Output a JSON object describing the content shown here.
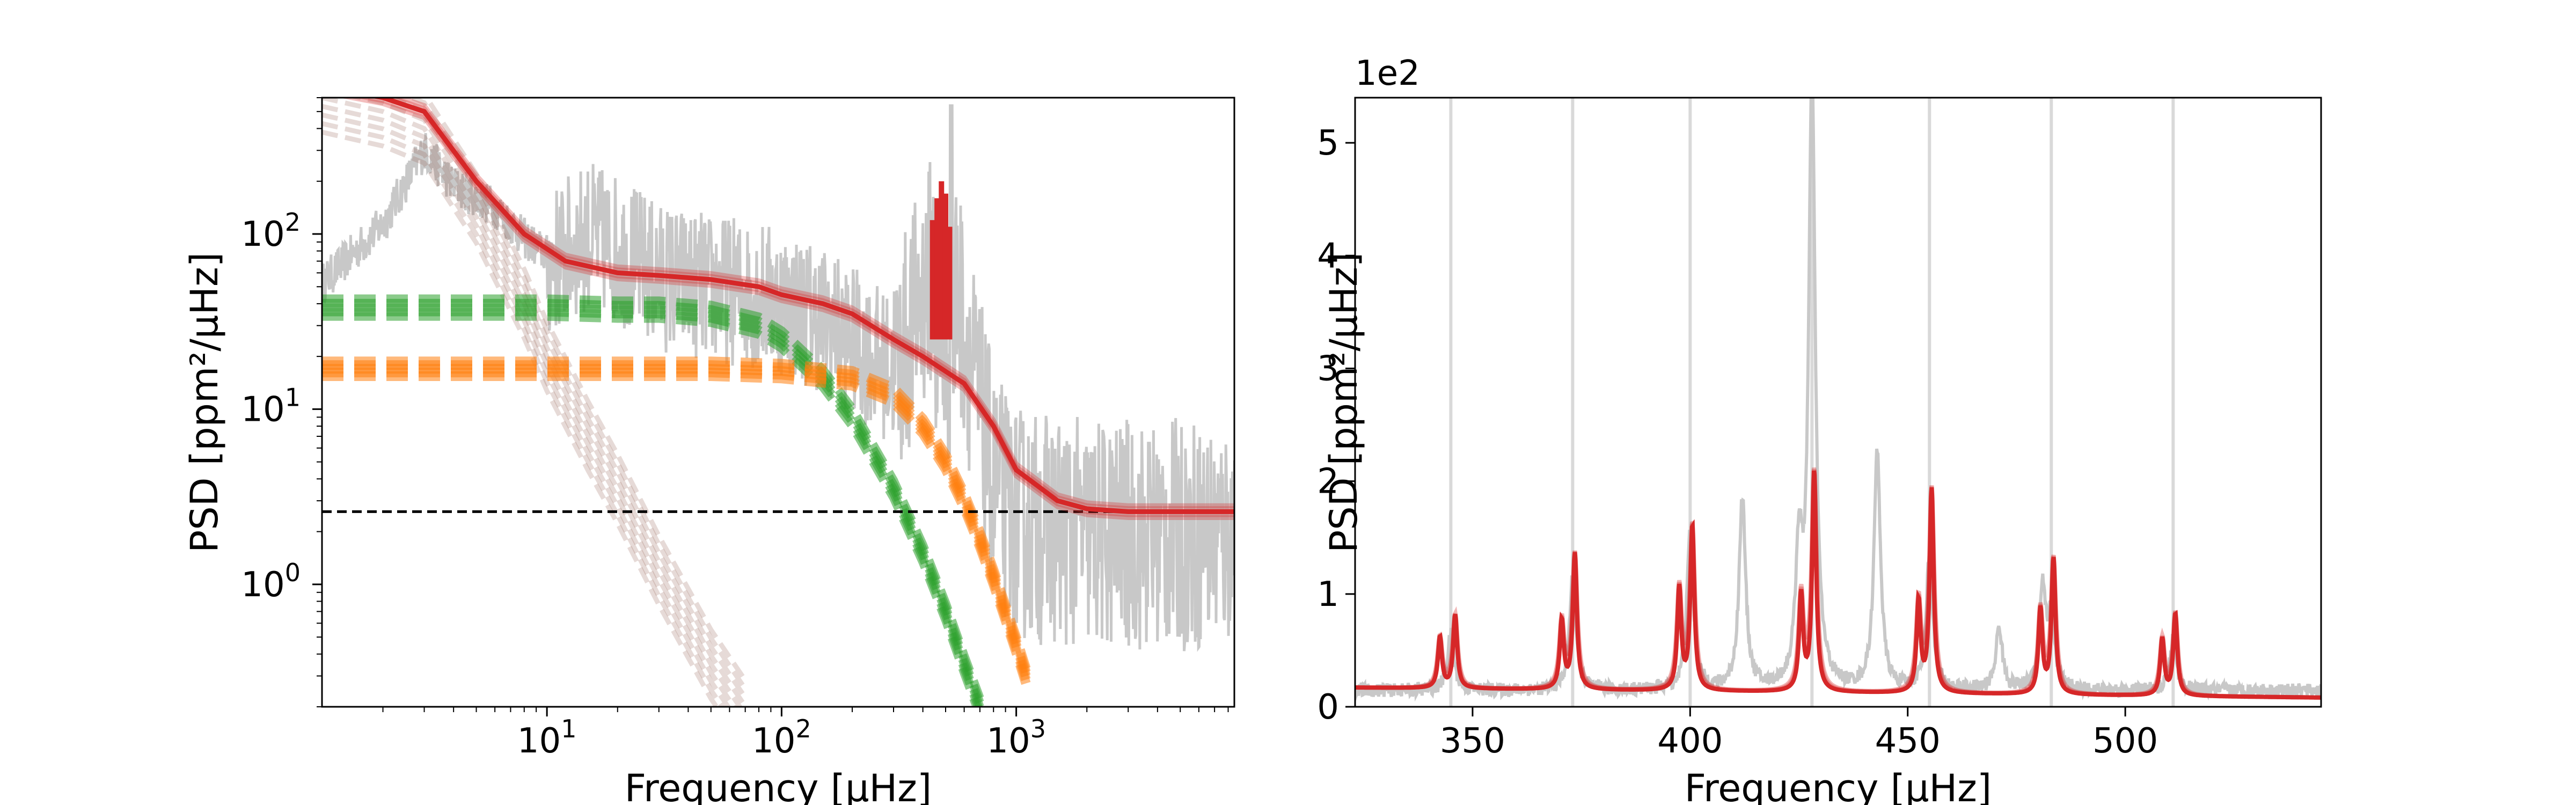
{
  "chart_data": [
    {
      "type": "line",
      "panel": "left",
      "title": "",
      "xlabel": "Frequency [μHz]",
      "ylabel": "PSD [ppm²/μHz]",
      "xscale": "log",
      "yscale": "log",
      "xlim": [
        1.1,
        8500
      ],
      "ylim": [
        0.2,
        600
      ],
      "xtick_values": [
        10,
        100,
        1000
      ],
      "xtick_labels": [
        {
          "base": "10",
          "exp": "1"
        },
        {
          "base": "10",
          "exp": "2"
        },
        {
          "base": "10",
          "exp": "3"
        }
      ],
      "ytick_values": [
        1,
        10,
        100
      ],
      "ytick_labels": [
        {
          "base": "10",
          "exp": "0"
        },
        {
          "base": "10",
          "exp": "1"
        },
        {
          "base": "10",
          "exp": "2"
        }
      ],
      "grid": false,
      "legend": "none",
      "white_noise_level": 2.6,
      "series": [
        {
          "style": "power spectrum",
          "color": "#c8c8c8",
          "x": [
            1.1,
            2,
            3,
            4,
            6,
            8,
            10,
            15,
            20,
            30,
            50,
            80,
            100,
            150,
            200,
            300,
            500,
            800,
            1000,
            2000,
            5000,
            8500
          ],
          "y": [
            55,
            120,
            320,
            200,
            150,
            100,
            80,
            120,
            100,
            70,
            60,
            55,
            50,
            40,
            30,
            20,
            150,
            5,
            3,
            2.6,
            2.6,
            2.6
          ]
        },
        {
          "style": "total model fit",
          "color": "#d62728",
          "x": [
            1.1,
            2,
            3,
            5,
            8,
            12,
            20,
            30,
            50,
            80,
            100,
            150,
            200,
            300,
            400,
            600,
            800,
            1000,
            1500,
            2000,
            3000,
            5000,
            8500
          ],
          "y": [
            700,
            600,
            500,
            200,
            100,
            70,
            60,
            58,
            55,
            50,
            45,
            40,
            35,
            25,
            20,
            14,
            8,
            4.5,
            3,
            2.7,
            2.6,
            2.6,
            2.6
          ]
        },
        {
          "style": "granulation component 1 (dashed)",
          "color": "#2ca02c",
          "x": [
            1.1,
            5,
            10,
            20,
            30,
            50,
            80,
            100,
            150,
            200,
            300,
            400,
            500,
            600,
            700
          ],
          "y": [
            38,
            38,
            38,
            37,
            37,
            35,
            30,
            25,
            15,
            9,
            3.5,
            1.5,
            0.7,
            0.35,
            0.2
          ]
        },
        {
          "style": "granulation component 2 (dashed)",
          "color": "#ff7f0e",
          "x": [
            1.1,
            10,
            50,
            100,
            200,
            300,
            400,
            500,
            600,
            700,
            800,
            1000,
            1100
          ],
          "y": [
            17,
            17,
            17,
            16.5,
            15,
            12,
            8,
            5,
            3,
            1.8,
            1.1,
            0.45,
            0.3
          ]
        },
        {
          "style": "low-frequency component (dashed)",
          "color": "#8c564b",
          "x": [
            1.1,
            2,
            3,
            5,
            8,
            10,
            15,
            20,
            30,
            50,
            70
          ],
          "y": [
            600,
            500,
            400,
            140,
            40,
            20,
            7,
            3.5,
            1.2,
            0.35,
            0.18
          ]
        },
        {
          "style": "oscillation modes",
          "color": "#d62728",
          "x": [
            440,
            460,
            480,
            500,
            520
          ],
          "y": [
            120,
            160,
            200,
            170,
            110
          ]
        }
      ]
    },
    {
      "type": "line",
      "panel": "right",
      "title": "",
      "xlabel": "Frequency [μHz]",
      "ylabel": "PSD [ppm²/μHz]",
      "offset_text": "1e2",
      "xscale": "linear",
      "yscale": "linear",
      "xlim": [
        323,
        545
      ],
      "ylim": [
        0,
        5.4
      ],
      "xtick_values": [
        350,
        400,
        450,
        500
      ],
      "xtick_labels": [
        "350",
        "400",
        "450",
        "500"
      ],
      "ytick_values": [
        0,
        1,
        2,
        3,
        4,
        5
      ],
      "ytick_labels": [
        "0",
        "1",
        "2",
        "3",
        "4",
        "5"
      ],
      "grid": false,
      "legend": "none",
      "mode_marker_lines": [
        345,
        373,
        400,
        428,
        455,
        483,
        511
      ],
      "series": [
        {
          "style": "power spectrum",
          "color": "#c8c8c8",
          "peaks": [
            [
              345,
              0.5
            ],
            [
              373,
              1.0
            ],
            [
              400,
              1.4
            ],
            [
              412,
              1.7
            ],
            [
              425,
              1.15
            ],
            [
              428,
              5.4
            ],
            [
              443,
              2.1
            ],
            [
              455,
              1.2
            ],
            [
              471,
              0.55
            ],
            [
              481,
              0.9
            ],
            [
              483,
              0.6
            ],
            [
              511,
              0.45
            ]
          ]
        },
        {
          "style": "model fit",
          "color": "#d62728",
          "peaks": [
            [
              342.5,
              0.45
            ],
            [
              346,
              0.65
            ],
            [
              370.5,
              0.6
            ],
            [
              373.5,
              1.2
            ],
            [
              397.5,
              0.9
            ],
            [
              400.5,
              1.45
            ],
            [
              425.5,
              0.85
            ],
            [
              428.5,
              1.95
            ],
            [
              452.5,
              0.8
            ],
            [
              455.5,
              1.8
            ],
            [
              480.5,
              0.75
            ],
            [
              483.5,
              1.2
            ],
            [
              508.5,
              0.5
            ],
            [
              511.5,
              0.72
            ]
          ]
        }
      ]
    }
  ]
}
